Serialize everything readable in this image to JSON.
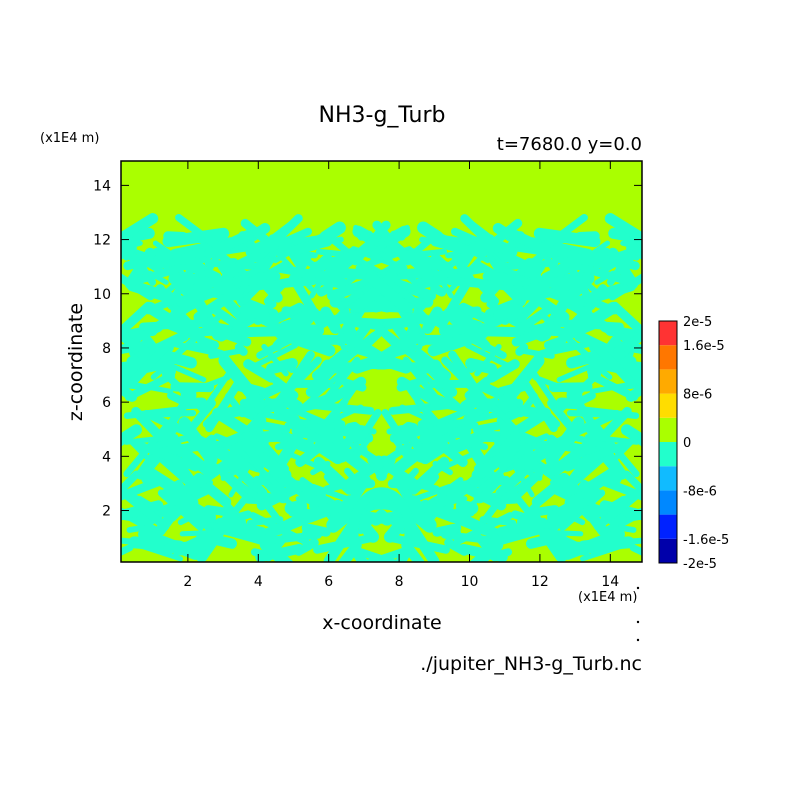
{
  "chart_data": {
    "type": "heatmap",
    "title": "NH3-g_Turb",
    "subtitle": "t=7680.0 y=0.0",
    "xlabel": "x-coordinate",
    "ylabel": "z-coordinate",
    "x_unit": "(x1E4 m)",
    "y_unit": "(x1E4 m)",
    "xlim": [
      0.1,
      14.9
    ],
    "ylim": [
      0.1,
      14.9
    ],
    "x_ticks": [
      "2",
      "4",
      "6",
      "8",
      "10",
      "12",
      "14"
    ],
    "y_ticks": [
      "2",
      "4",
      "6",
      "8",
      "10",
      "12",
      "14"
    ],
    "turbulent_layer_top": 12.4,
    "field_description_values": {
      "background_level": 0,
      "turbulent_patch_level": -4e-06
    },
    "colorbar": {
      "labels": [
        "2e-5",
        "1.6e-5",
        "8e-6",
        "0",
        "-8e-6",
        "-1.6e-5",
        "-2e-5"
      ],
      "levels": [
        -2e-05,
        -1.6e-05,
        -1.2e-05,
        -8e-06,
        -4e-06,
        0,
        4e-06,
        8e-06,
        1.2e-05,
        1.6e-05,
        2e-05
      ],
      "colors": [
        "#0000aa",
        "#0022ff",
        "#0088ff",
        "#11bbff",
        "#22ffcc",
        "#aaff00",
        "#ffdd00",
        "#ffaa00",
        "#ff7700",
        "#ff3333"
      ]
    },
    "grid": false,
    "legend_placement": "right"
  },
  "source_file": "./jupiter_NH3-g_Turb.nc",
  "colors": {
    "background_field": "#aaff00",
    "turbulent_patch": "#22ffcc"
  }
}
